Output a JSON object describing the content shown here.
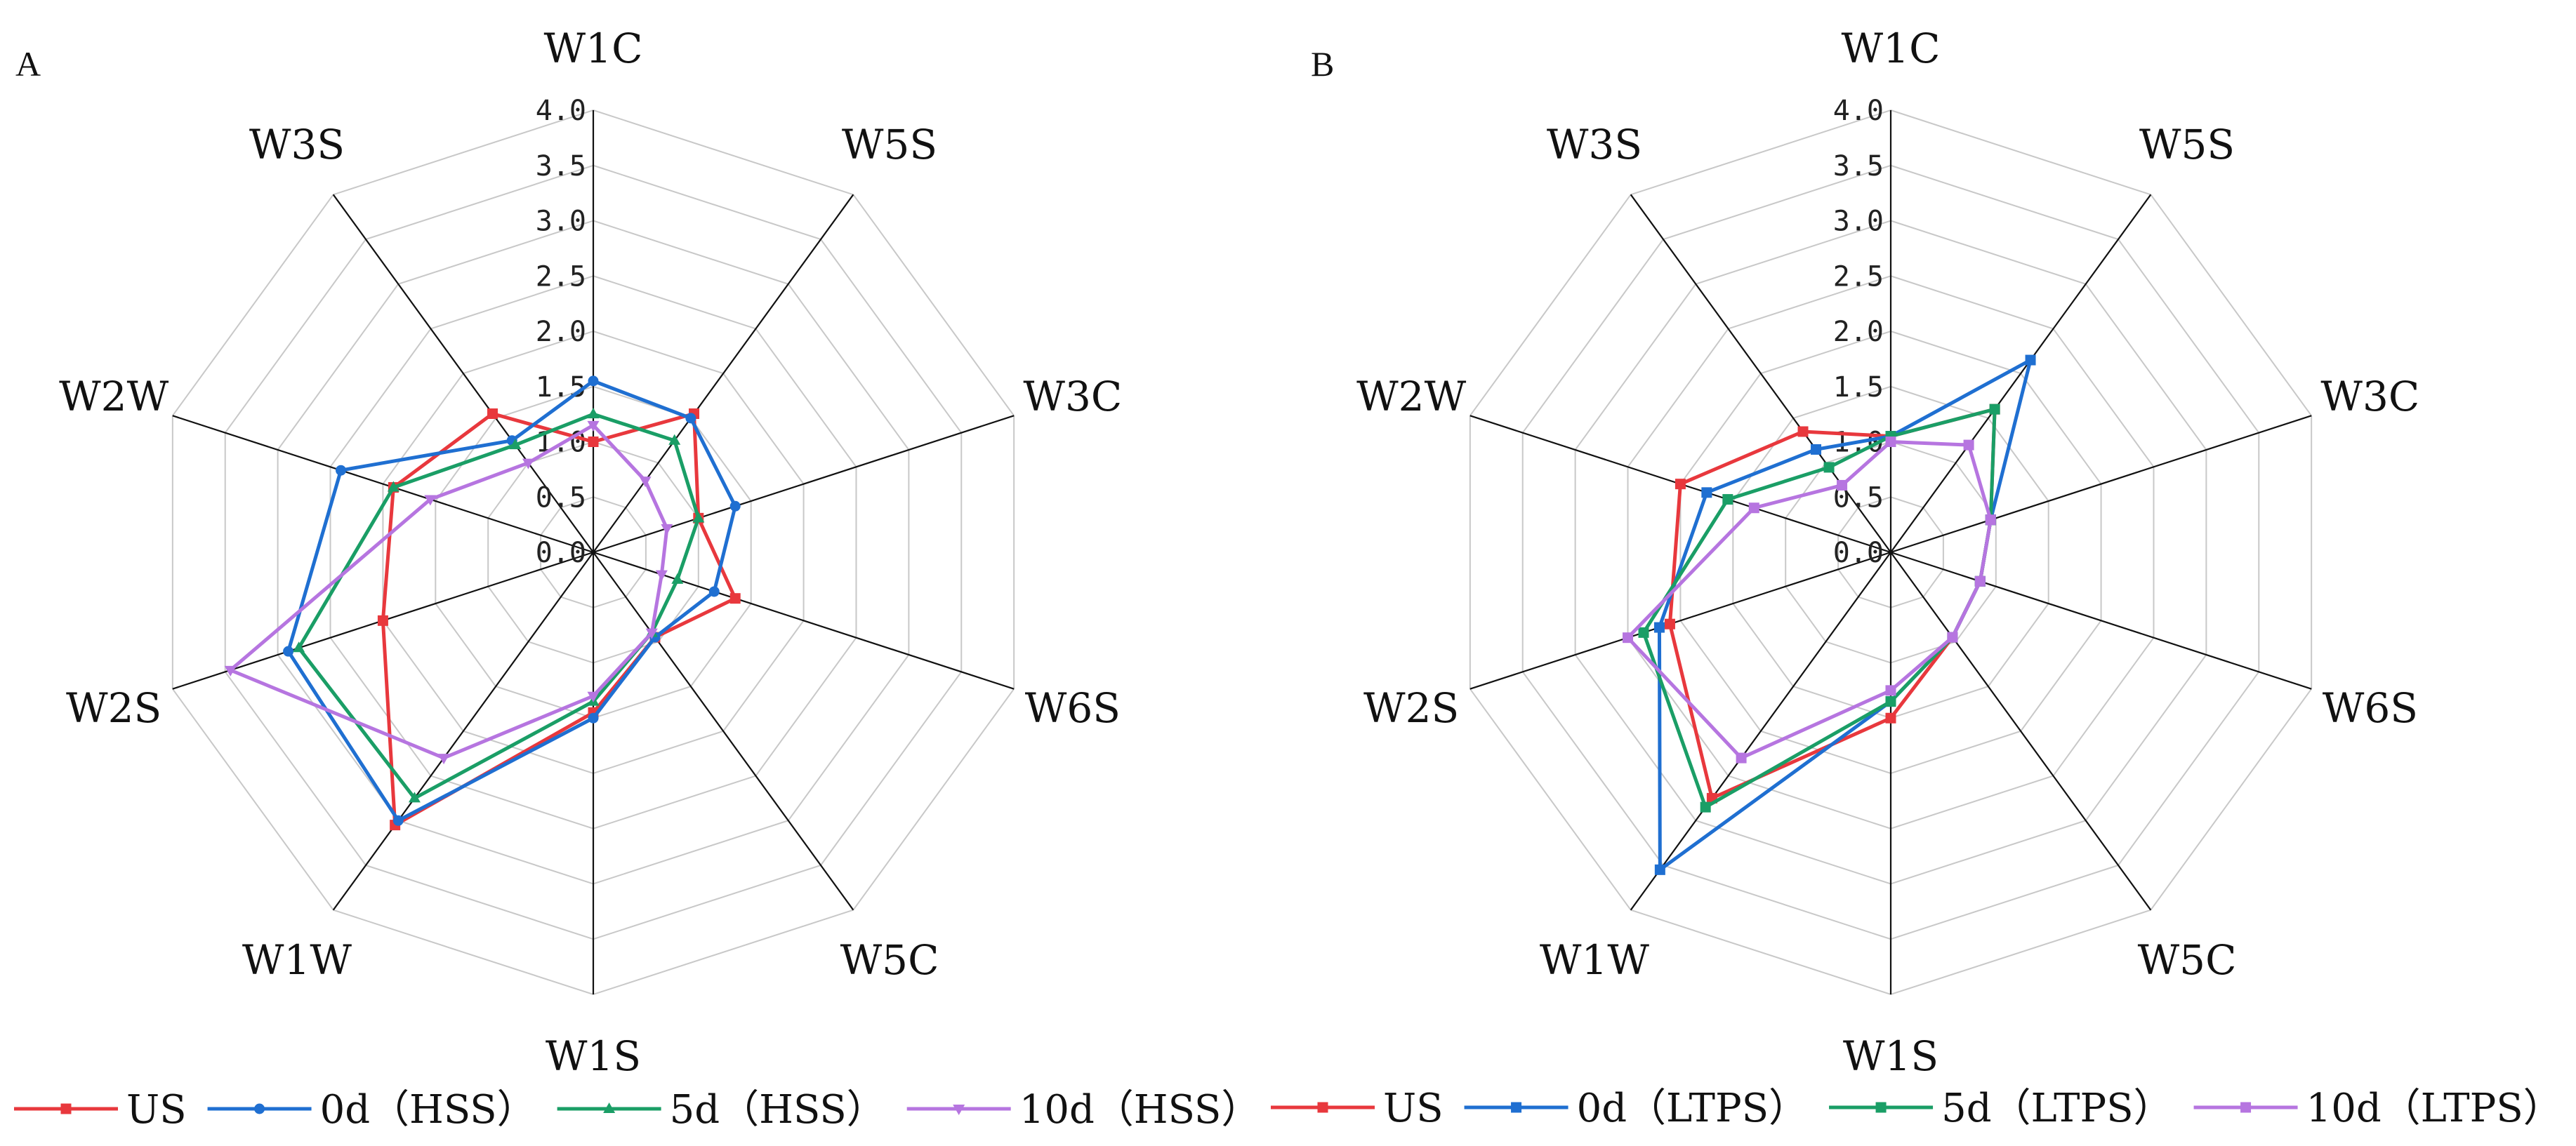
{
  "chart_data": [
    {
      "type": "radar",
      "panel": "A",
      "axes": [
        "W1C",
        "W5S",
        "W3C",
        "W6S",
        "W5C",
        "W1S",
        "W1W",
        "W2S",
        "W2W",
        "W3S"
      ],
      "rmax": 4.0,
      "ticks": [
        "0.0",
        "0.5",
        "1.0",
        "1.5",
        "2.0",
        "2.5",
        "3.0",
        "3.5",
        "4.0"
      ],
      "series": [
        {
          "name": "US",
          "color": "#e8383d",
          "marker": "square",
          "values": [
            1.0,
            1.55,
            1.0,
            1.35,
            0.95,
            1.45,
            3.05,
            2.0,
            1.9,
            1.55
          ]
        },
        {
          "name": "0d（HSS）",
          "color": "#1f6fd1",
          "marker": "circle",
          "values": [
            1.55,
            1.5,
            1.35,
            1.15,
            0.95,
            1.5,
            3.0,
            2.9,
            2.4,
            1.25
          ]
        },
        {
          "name": "5d（HSS）",
          "color": "#1a9e66",
          "marker": "triangle",
          "values": [
            1.25,
            1.25,
            1.0,
            0.8,
            0.9,
            1.35,
            2.75,
            2.8,
            1.9,
            1.2
          ]
        },
        {
          "name": "10d（HSS）",
          "color": "#b675e0",
          "marker": "triangle-down",
          "values": [
            1.15,
            0.8,
            0.7,
            0.65,
            0.9,
            1.3,
            2.3,
            3.45,
            1.55,
            1.0
          ]
        }
      ]
    },
    {
      "type": "radar",
      "panel": "B",
      "axes": [
        "W1C",
        "W5S",
        "W3C",
        "W6S",
        "W5C",
        "W1S",
        "W1W",
        "W2S",
        "W2W",
        "W3S"
      ],
      "rmax": 4.0,
      "ticks": [
        "0.0",
        "0.5",
        "1.0",
        "1.5",
        "2.0",
        "2.5",
        "3.0",
        "3.5",
        "4.0"
      ],
      "series": [
        {
          "name": "US",
          "color": "#e8383d",
          "marker": "square",
          "values": [
            1.05,
            1.6,
            0.95,
            0.85,
            0.95,
            1.5,
            2.75,
            2.1,
            2.0,
            1.35
          ]
        },
        {
          "name": "0d（LTPS）",
          "color": "#1f6fd1",
          "marker": "square",
          "values": [
            1.05,
            2.15,
            0.95,
            0.85,
            0.95,
            1.35,
            3.55,
            2.2,
            1.75,
            1.15
          ]
        },
        {
          "name": "5d（LTPS）",
          "color": "#1a9e66",
          "marker": "square",
          "values": [
            1.05,
            1.6,
            0.95,
            0.85,
            0.95,
            1.35,
            2.85,
            2.35,
            1.55,
            0.95
          ]
        },
        {
          "name": "10d（LTPS）",
          "color": "#b675e0",
          "marker": "square",
          "values": [
            1.0,
            1.2,
            0.95,
            0.85,
            0.95,
            1.25,
            2.3,
            2.5,
            1.3,
            0.75
          ]
        }
      ]
    }
  ]
}
